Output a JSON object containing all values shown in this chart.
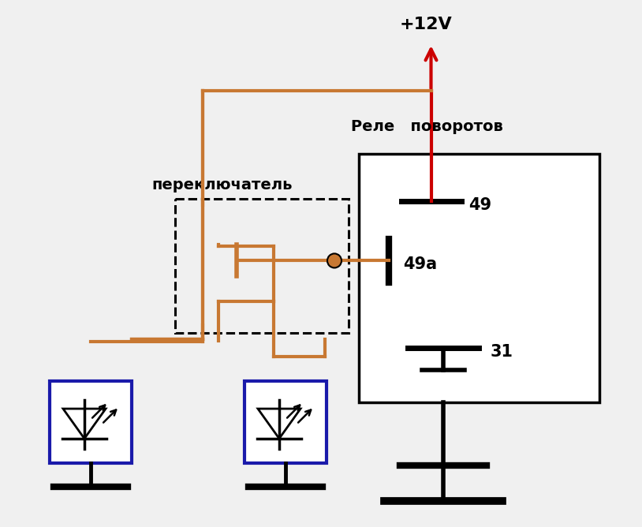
{
  "bg_color": "#f0f0f0",
  "wire_color": "#c87832",
  "box_color": "#000000",
  "lamp_box_color": "#1a1aaa",
  "arrow_color": "#cc0000",
  "text_color": "#000000",
  "title_12v": "+12V",
  "title_relay": "Реле   поворотов",
  "title_switch": "переключатель",
  "label_49": "49",
  "label_49a": "49a",
  "label_31": "31"
}
